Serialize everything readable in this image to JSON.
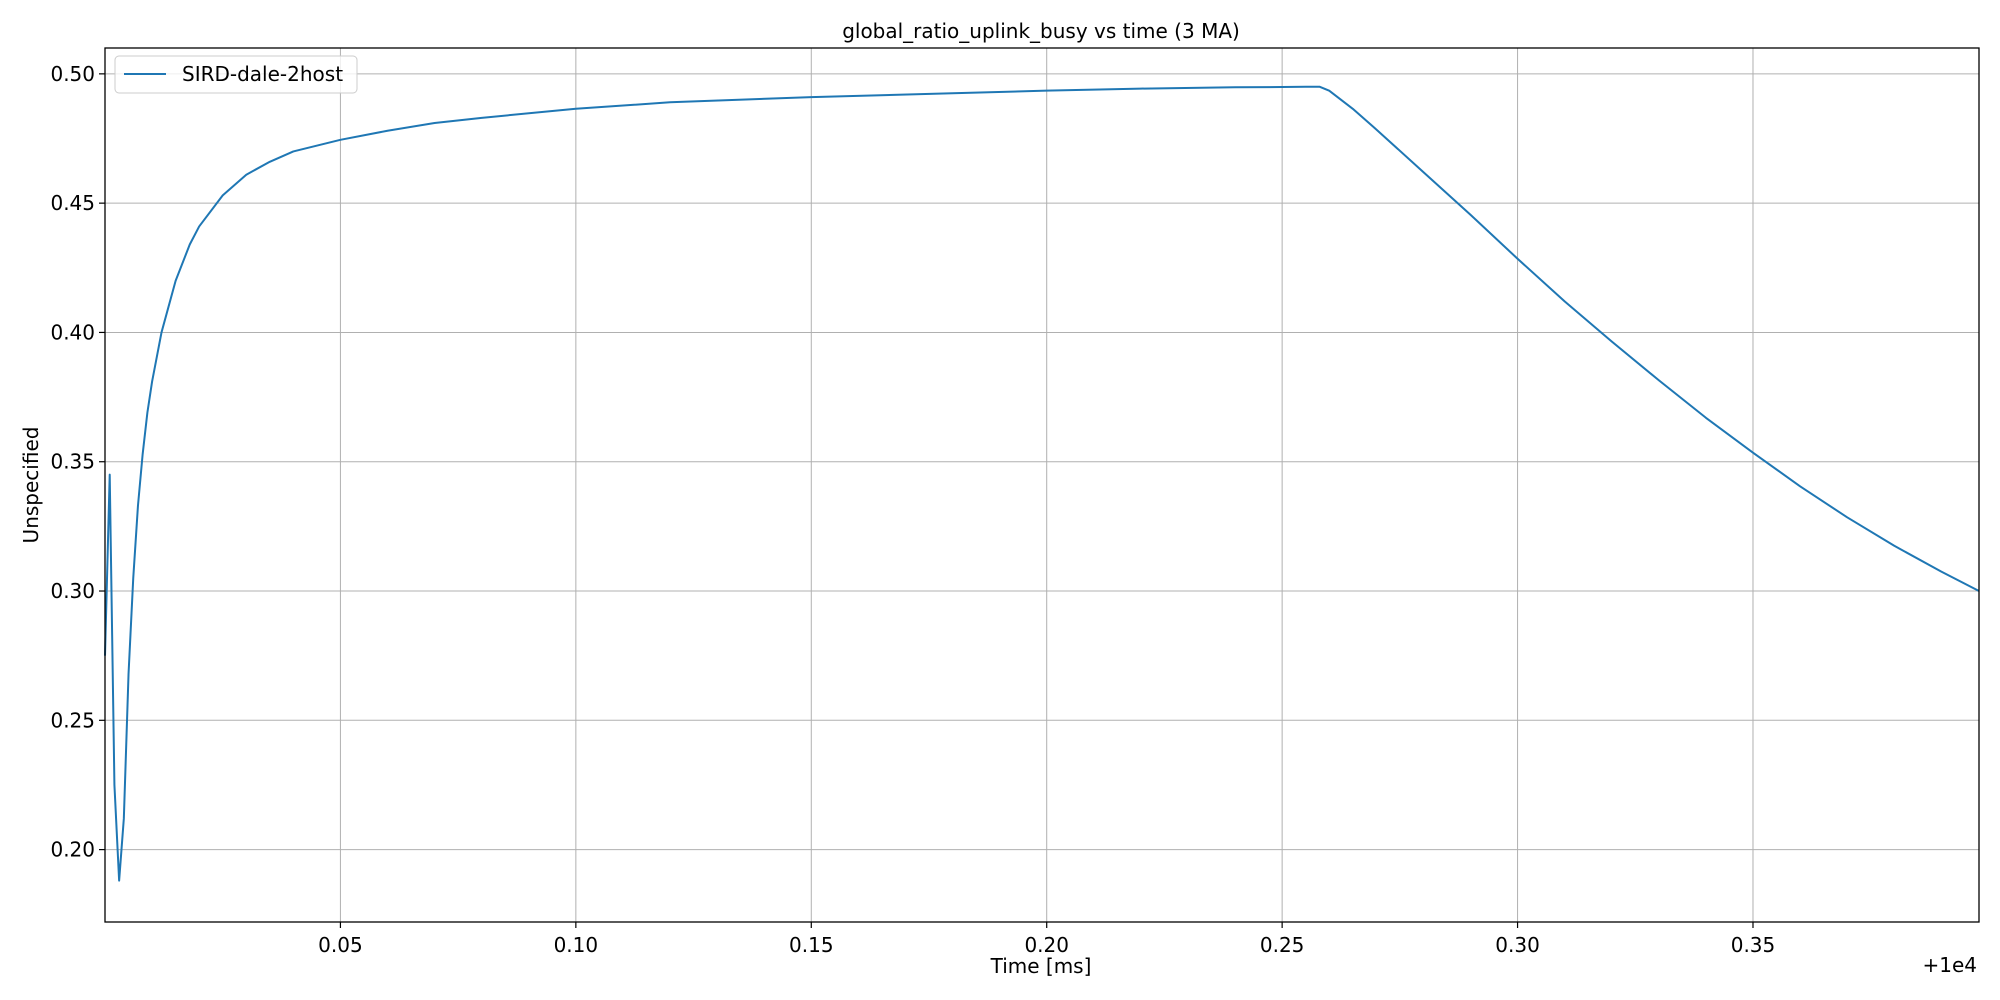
{
  "chart_data": {
    "type": "line",
    "title": "global_ratio_uplink_busy vs time (3 MA)",
    "xlabel": "Time [ms]",
    "ylabel": "Unspecified",
    "x_offset_label": "+1e4",
    "xlim": [
      0.0,
      0.398
    ],
    "ylim": [
      0.172,
      0.51
    ],
    "x_ticks": [
      0.05,
      0.1,
      0.15,
      0.2,
      0.25,
      0.3,
      0.35
    ],
    "x_tick_labels": [
      "0.05",
      "0.10",
      "0.15",
      "0.20",
      "0.25",
      "0.30",
      "0.35"
    ],
    "y_ticks": [
      0.2,
      0.25,
      0.3,
      0.35,
      0.4,
      0.45,
      0.5
    ],
    "y_tick_labels": [
      "0.20",
      "0.25",
      "0.30",
      "0.35",
      "0.40",
      "0.45",
      "0.50"
    ],
    "grid": true,
    "legend_position": "top-left",
    "series": [
      {
        "name": "SIRD-dale-2host",
        "color": "#1f77b4",
        "x": [
          0.0,
          0.001,
          0.002,
          0.003,
          0.004,
          0.005,
          0.006,
          0.007,
          0.008,
          0.009,
          0.01,
          0.012,
          0.015,
          0.018,
          0.02,
          0.025,
          0.03,
          0.035,
          0.04,
          0.05,
          0.06,
          0.07,
          0.08,
          0.1,
          0.12,
          0.15,
          0.18,
          0.2,
          0.22,
          0.24,
          0.25,
          0.255,
          0.258,
          0.26,
          0.265,
          0.27,
          0.28,
          0.29,
          0.3,
          0.31,
          0.32,
          0.33,
          0.34,
          0.35,
          0.36,
          0.37,
          0.38,
          0.39,
          0.398
        ],
        "y": [
          0.275,
          0.345,
          0.225,
          0.188,
          0.212,
          0.268,
          0.305,
          0.333,
          0.353,
          0.369,
          0.381,
          0.4,
          0.42,
          0.434,
          0.441,
          0.453,
          0.461,
          0.466,
          0.47,
          0.4745,
          0.478,
          0.481,
          0.483,
          0.4865,
          0.489,
          0.491,
          0.4925,
          0.4935,
          0.4943,
          0.4948,
          0.4949,
          0.495,
          0.495,
          0.4935,
          0.4865,
          0.4785,
          0.462,
          0.4455,
          0.4285,
          0.412,
          0.3965,
          0.3815,
          0.367,
          0.3535,
          0.3405,
          0.3285,
          0.3175,
          0.3075,
          0.3
        ]
      }
    ]
  }
}
